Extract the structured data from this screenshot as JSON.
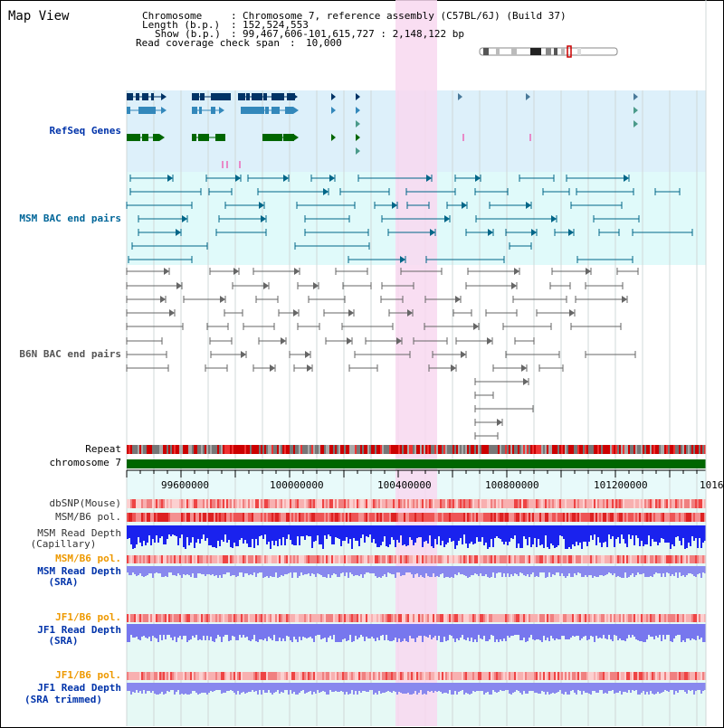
{
  "title": "Map View",
  "info": {
    "chromosome_label": "Chromosome",
    "chromosome_value": "Chromosome 7, reference assembly (C57BL/6J) (Build 37)",
    "length_label": "Length (b.p.)",
    "length_value": "152,524,553",
    "show_label": "Show (b.p.)",
    "show_value": "99,467,606-101,615,727 : 2,148,122 bp",
    "coverage_label": "Read coverage check span",
    "coverage_value": "10,000"
  },
  "tracks": {
    "refseq": "RefSeq Genes",
    "msm_bac": "MSM BAC end pairs",
    "b6n_bac": "B6N BAC end pairs",
    "repeat": "Repeat",
    "chromosome": "chromosome 7",
    "dbsnp": "dbSNP(Mouse)",
    "msm_b6_pol_1": "MSM/B6 pol.",
    "msm_depth_cap_1": "MSM Read Depth",
    "msm_depth_cap_2": "(Capillary)",
    "msm_b6_pol_2": "MSM/B6 pol.",
    "msm_depth_sra_1": "MSM Read Depth",
    "msm_depth_sra_2": "(SRA)",
    "jf1_b6_pol_1": "JF1/B6 pol.",
    "jf1_depth_sra_1": "JF1 Read Depth",
    "jf1_depth_sra_2": "(SRA)",
    "jf1_b6_pol_2": "JF1/B6 pol.",
    "jf1_depth_trim_1": "JF1 Read Depth",
    "jf1_depth_trim_2": "(SRA trimmed)"
  },
  "axis": {
    "ticks": [
      "99600000",
      "100000000",
      "100400000",
      "100800000",
      "101200000",
      "1016"
    ]
  },
  "colors": {
    "refseq_bg": "#ddf0fa",
    "msm_bg": "#e0fafa",
    "highlight": "#f8d8f0",
    "chromosome_bar": "#006600",
    "label_blue": "#0033aa",
    "label_orange": "#ee9900"
  }
}
